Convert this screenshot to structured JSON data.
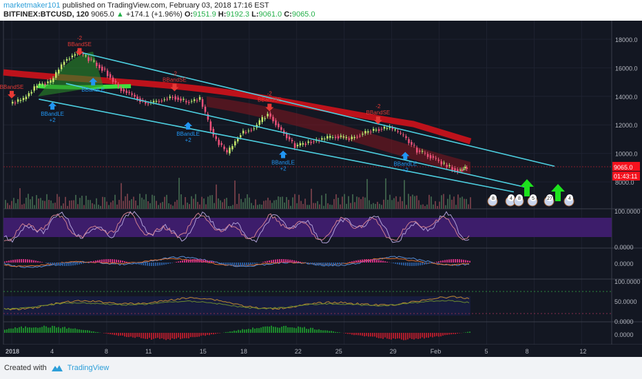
{
  "header": {
    "user": "marketmaker101",
    "published": "published on TradingView.com, February 03, 2018 17:16 EST"
  },
  "quote": {
    "symbol": "BITFINEX:BTCUSD, 120",
    "last": "9065.0",
    "arrow": "▲",
    "change": "+174.1 (+1.96%)",
    "o_label": "O:",
    "o": "9151.9",
    "h_label": "H:",
    "h": "9192.3",
    "l_label": "L:",
    "l": "9061.0",
    "c_label": "C:",
    "c": "9065.0"
  },
  "colors": {
    "up": "#24b04a",
    "down": "#e0294a",
    "channel": "#4dd0e1",
    "band": "#d0121b",
    "signal_short": "#e53935",
    "signal_long": "#2196f3",
    "stoch_fill": "#3d1d6b"
  },
  "chart_data": {
    "type": "line",
    "title": "BITFINEX:BTCUSD, 120",
    "x_unit": "day of 2018 (Jan=1..31, Feb=32..)",
    "x": [
      1,
      2,
      3,
      4,
      5,
      6,
      7,
      8,
      9,
      10,
      11,
      12,
      13,
      14,
      15,
      16,
      17,
      18,
      19,
      20,
      21,
      22,
      23,
      24,
      25,
      26,
      27,
      28,
      29,
      30,
      31,
      32,
      33,
      34,
      34.6
    ],
    "price": [
      13500,
      13800,
      14800,
      15000,
      16500,
      17100,
      16500,
      15800,
      14600,
      14100,
      13500,
      13700,
      14000,
      13600,
      13800,
      11200,
      10000,
      11400,
      11800,
      12800,
      11600,
      10500,
      10800,
      11000,
      11200,
      11000,
      11400,
      11700,
      11800,
      11200,
      10200,
      9800,
      9200,
      8800,
      9065
    ],
    "ylim": [
      7000,
      19000
    ],
    "price_ticks": [
      "18000.0",
      "16000.0",
      "14000.0",
      "12000.0",
      "10000.0",
      "8000.0"
    ],
    "time_ticks": [
      {
        "label": "2018",
        "day": 1
      },
      {
        "label": "4",
        "day": 4
      },
      {
        "label": "8",
        "day": 8
      },
      {
        "label": "11",
        "day": 11
      },
      {
        "label": "15",
        "day": 15
      },
      {
        "label": "18",
        "day": 18
      },
      {
        "label": "22",
        "day": 22
      },
      {
        "label": "25",
        "day": 25
      },
      {
        "label": "29",
        "day": 29
      },
      {
        "label": "Feb",
        "day": 32
      },
      {
        "label": "5",
        "day": 36
      },
      {
        "label": "8",
        "day": 39
      },
      {
        "label": "12",
        "day": 43
      }
    ],
    "last_price_label": "9065.0",
    "countdown": "01:43:11",
    "channel_lines": [
      [
        [
          6,
          17100
        ],
        [
          41,
          9100
        ]
      ],
      [
        [
          5,
          14900
        ],
        [
          39,
          7600
        ]
      ],
      [
        [
          3,
          13800
        ],
        [
          38,
          7300
        ]
      ]
    ],
    "signals": [
      {
        "type": "short",
        "top": "-2",
        "label": "BBandSE",
        "day": 6,
        "price": 16900
      },
      {
        "type": "short",
        "top": "",
        "label": "BBandSE",
        "day": 1,
        "price": 13900
      },
      {
        "type": "short",
        "top": "-2",
        "label": "BBandSE",
        "day": 13,
        "price": 14400
      },
      {
        "type": "short",
        "top": "-2",
        "label": "BBandSE",
        "day": 20,
        "price": 13000
      },
      {
        "type": "short",
        "top": "-2",
        "label": "BBandSE",
        "day": 28,
        "price": 12100
      },
      {
        "type": "long",
        "label": "BBandLE",
        "bottom": "+2",
        "day": 4,
        "price": 13600
      },
      {
        "type": "long",
        "label": "BBandLE",
        "bottom": "",
        "day": 7,
        "price": 15300
      },
      {
        "type": "long",
        "label": "BBandLE",
        "bottom": "+2",
        "day": 14,
        "price": 12200
      },
      {
        "type": "long",
        "label": "BBandLE",
        "bottom": "+2",
        "day": 21,
        "price": 10200
      },
      {
        "type": "long",
        "label": "BBandLE",
        "bottom": "+2",
        "day": 30,
        "price": 10100
      }
    ],
    "events": [
      "8",
      "4",
      "8",
      "5",
      "27",
      "4"
    ],
    "panes": [
      {
        "name": "stochastic",
        "ticks": [
          "100.0000",
          "0.0000"
        ]
      },
      {
        "name": "macd",
        "ticks": [
          "0.0000"
        ]
      },
      {
        "name": "rsi",
        "ticks": [
          "100.0000",
          "50.0000",
          "0.0000"
        ]
      },
      {
        "name": "histogram",
        "ticks": [
          "0.0000"
        ]
      }
    ]
  },
  "footer": {
    "created": "Created with",
    "brand": "TradingView"
  }
}
